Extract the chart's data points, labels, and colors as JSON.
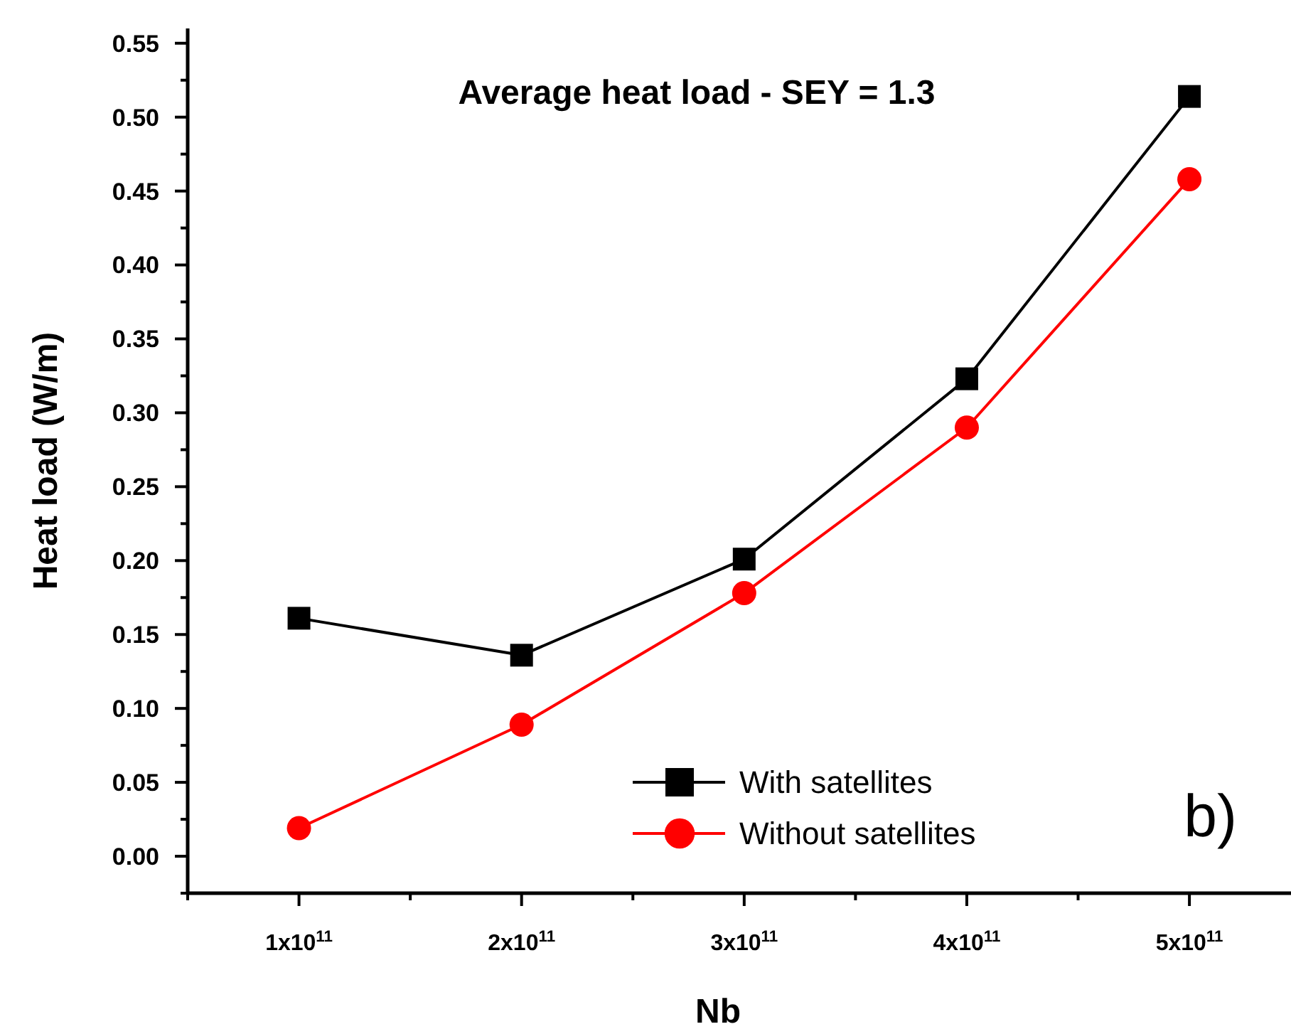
{
  "chart_data": {
    "type": "line",
    "title": "Average heat load - SEY = 1.3",
    "xlabel": "Nb",
    "ylabel": "Heat load (W/m)",
    "x": [
      100000000000,
      200000000000,
      300000000000,
      400000000000,
      500000000000
    ],
    "series": [
      {
        "name": "With satellites",
        "color": "#000000",
        "marker": "square",
        "values": [
          0.161,
          0.136,
          0.201,
          0.323,
          0.514
        ]
      },
      {
        "name": "Without satellites",
        "color": "#ff0000",
        "marker": "circle",
        "values": [
          0.019,
          0.089,
          0.178,
          0.29,
          0.458
        ]
      }
    ],
    "xlim": [
      50000000000,
      545000000000
    ],
    "xticks": [
      {
        "value": 100000000000,
        "label": "1x10$^{11}$"
      },
      {
        "value": 200000000000,
        "label": "2x10$^{11}$"
      },
      {
        "value": 300000000000,
        "label": "3x10$^{11}$"
      },
      {
        "value": 400000000000,
        "label": "4x10$^{11}$"
      },
      {
        "value": 500000000000,
        "label": "5x10$^{11}$"
      }
    ],
    "ylim": [
      -0.025,
      0.56
    ],
    "yticks": [
      {
        "value": 0,
        "label": "0.00"
      },
      {
        "value": 0.05,
        "label": "0.05"
      },
      {
        "value": 0.1,
        "label": "0.10"
      },
      {
        "value": 0.15,
        "label": "0.15"
      },
      {
        "value": 0.2,
        "label": "0.20"
      },
      {
        "value": 0.25,
        "label": "0.25"
      },
      {
        "value": 0.3,
        "label": "0.30"
      },
      {
        "value": 0.35,
        "label": "0.35"
      },
      {
        "value": 0.4,
        "label": "0.40"
      },
      {
        "value": 0.45,
        "label": "0.45"
      },
      {
        "value": 0.5,
        "label": "0.50"
      },
      {
        "value": 0.55,
        "label": "0.55"
      }
    ],
    "annotations": [
      "b)"
    ],
    "legend": "bottom right",
    "grid": false,
    "line_style": "solid"
  }
}
